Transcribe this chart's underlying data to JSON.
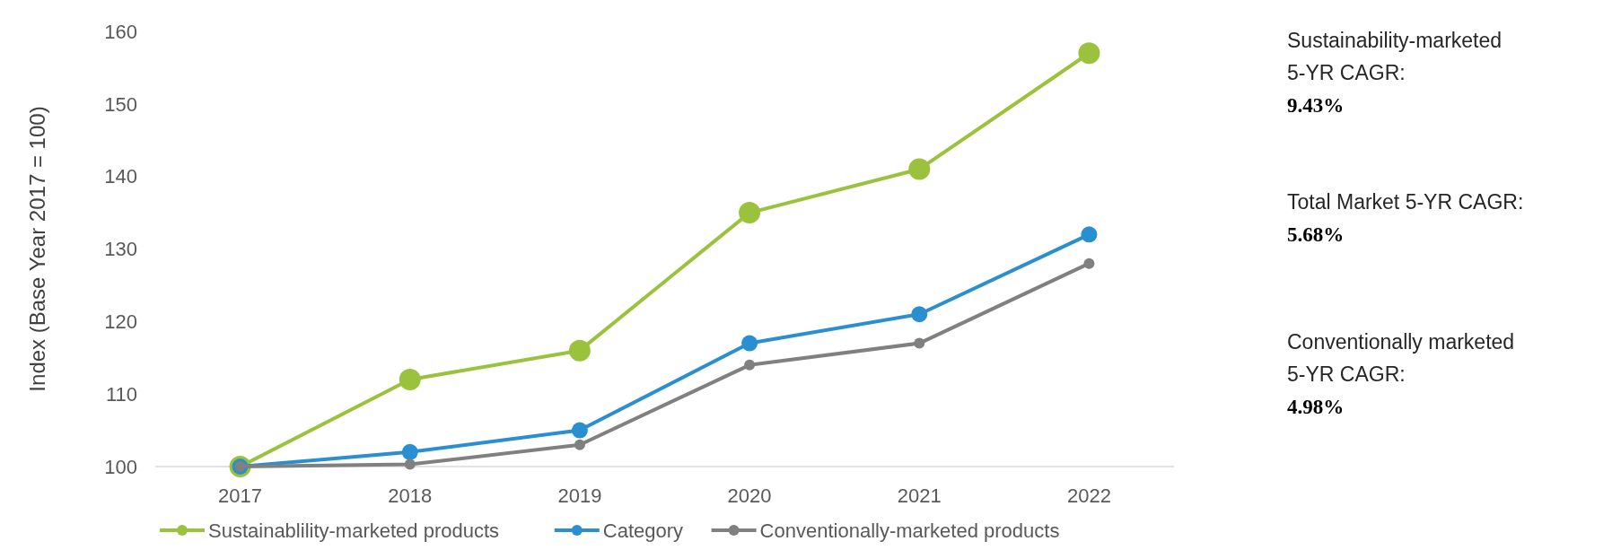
{
  "chart_data": {
    "type": "line",
    "ylabel": "Index (Base Year 2017 = 100)",
    "categories": [
      "2017",
      "2018",
      "2019",
      "2020",
      "2021",
      "2022"
    ],
    "series": [
      {
        "name": "Sustainablility-marketed products",
        "color": "#9bc23c",
        "values": [
          100,
          112,
          116,
          135,
          141,
          157
        ]
      },
      {
        "name": "Category",
        "color": "#2a8fd0",
        "values": [
          100,
          102,
          105,
          117,
          121,
          132
        ]
      },
      {
        "name": "Conventionally-marketed products",
        "color": "#808080",
        "values": [
          100,
          100.3,
          103,
          114,
          117,
          128
        ]
      }
    ],
    "ylim": [
      100,
      160
    ],
    "yticks": [
      100,
      110,
      120,
      130,
      140,
      150,
      160
    ],
    "legend": "bottom",
    "marker": "circle",
    "line_style": "solid",
    "annotations": [
      "Sustainability-marketed\n5-YR CAGR:\n9.43%",
      "Total Market  5-YR CAGR:\n5.68%",
      "Conventionally marketed\n5-YR CAGR:\n4.98%"
    ]
  }
}
